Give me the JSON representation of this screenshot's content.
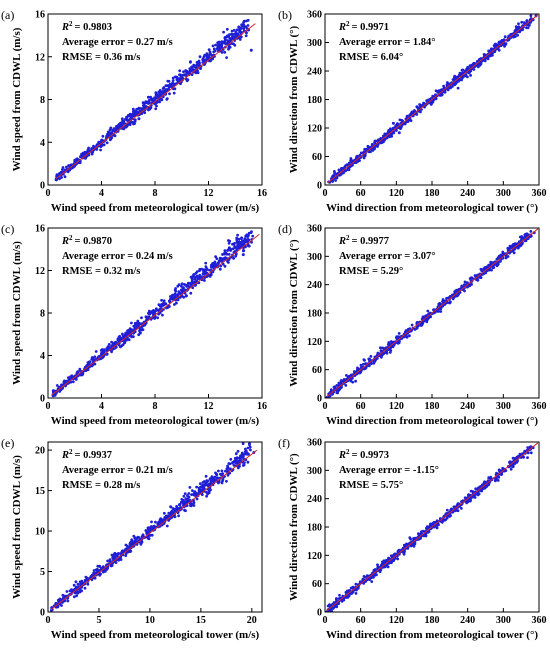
{
  "colors": {
    "points": "#1f1fd6",
    "fit_line": "#d62728",
    "axis": "#000000"
  },
  "chart_data": [
    {
      "type": "scatter",
      "panel_label": "(a)",
      "xlabel": "Wind speed from meteorological tower (m/s)",
      "ylabel": "Wind speed from CDWL (m/s)",
      "xlim": [
        0,
        16
      ],
      "ylim": [
        0,
        16
      ],
      "xticks": [
        "0",
        "4",
        "8",
        "12",
        "16"
      ],
      "yticks": [
        "0",
        "4",
        "8",
        "12",
        "16"
      ],
      "stats": {
        "r2": "= 0.9803",
        "avg_error": "Average error = 0.27 m/s",
        "rmse": "RMSE = 0.36 m/s"
      },
      "fit_line": [
        [
          0.6,
          0.6
        ],
        [
          15.5,
          15.1
        ]
      ],
      "points": [
        [
          1.0,
          1.2
        ],
        [
          1.5,
          1.3
        ],
        [
          2.0,
          2.3
        ],
        [
          2.4,
          2.1
        ],
        [
          3.0,
          3.3
        ],
        [
          3.3,
          2.9
        ],
        [
          3.8,
          4.0
        ],
        [
          4.2,
          4.1
        ],
        [
          4.6,
          4.9
        ],
        [
          5.0,
          4.6
        ],
        [
          5.4,
          5.7
        ],
        [
          5.9,
          5.5
        ],
        [
          6.3,
          6.6
        ],
        [
          6.8,
          6.2
        ],
        [
          7.2,
          7.6
        ],
        [
          7.6,
          7.1
        ],
        [
          8.1,
          8.4
        ],
        [
          8.5,
          8.0
        ],
        [
          9.0,
          9.3
        ],
        [
          9.4,
          9.0
        ],
        [
          9.9,
          10.3
        ],
        [
          10.4,
          9.8
        ],
        [
          10.9,
          11.2
        ],
        [
          11.4,
          10.9
        ],
        [
          11.9,
          12.0
        ],
        [
          12.3,
          11.8
        ],
        [
          13.0,
          13.4
        ],
        [
          13.6,
          13.2
        ],
        [
          14.2,
          14.1
        ],
        [
          15.0,
          14.5
        ],
        [
          15.2,
          12.6
        ],
        [
          2.8,
          2.5
        ],
        [
          6.0,
          6.5
        ],
        [
          8.8,
          8.6
        ]
      ]
    },
    {
      "type": "scatter",
      "panel_label": "(b)",
      "xlabel": "Wind direction from meteorological tower (°)",
      "ylabel": "Wind direction from CDWL (°)",
      "xlim": [
        0,
        360
      ],
      "ylim": [
        0,
        360
      ],
      "xticks": [
        "0",
        "60",
        "120",
        "180",
        "240",
        "300",
        "360"
      ],
      "yticks": [
        "0",
        "60",
        "120",
        "180",
        "240",
        "300",
        "360"
      ],
      "stats": {
        "r2": "= 0.9971",
        "avg_error": "Average error = 1.84°",
        "rmse": "RMSE = 6.04°"
      },
      "fit_line": [
        [
          5,
          5
        ],
        [
          358,
          358
        ]
      ],
      "points": [
        [
          20,
          15
        ],
        [
          30,
          35
        ],
        [
          40,
          32
        ],
        [
          50,
          52
        ],
        [
          60,
          58
        ],
        [
          70,
          75
        ],
        [
          80,
          78
        ],
        [
          90,
          95
        ],
        [
          100,
          98
        ],
        [
          110,
          118
        ],
        [
          120,
          115
        ],
        [
          130,
          128
        ],
        [
          140,
          138
        ],
        [
          150,
          152
        ],
        [
          160,
          158
        ],
        [
          170,
          170
        ],
        [
          180,
          178
        ],
        [
          190,
          195
        ],
        [
          200,
          200
        ],
        [
          210,
          212
        ],
        [
          220,
          218
        ],
        [
          230,
          232
        ],
        [
          240,
          238
        ],
        [
          250,
          255
        ],
        [
          260,
          258
        ],
        [
          270,
          272
        ],
        [
          280,
          278
        ],
        [
          290,
          292
        ],
        [
          300,
          302
        ],
        [
          310,
          308
        ],
        [
          320,
          325
        ],
        [
          330,
          328
        ],
        [
          340,
          342
        ],
        [
          350,
          348
        ],
        [
          355,
          356
        ],
        [
          115,
          130
        ],
        [
          125,
          110
        ]
      ]
    },
    {
      "type": "scatter",
      "panel_label": "(c)",
      "xlabel": "Wind speed from meteorological tower (m/s)",
      "ylabel": "Wind speed from CDWL (m/s)",
      "xlim": [
        0,
        16
      ],
      "ylim": [
        0,
        16
      ],
      "xticks": [
        "0",
        "4",
        "8",
        "12",
        "16"
      ],
      "yticks": [
        "0",
        "4",
        "8",
        "12",
        "16"
      ],
      "stats": {
        "r2": "= 0.9870",
        "avg_error": "Average error = 0.24 m/s",
        "rmse": "RMSE = 0.32 m/s"
      },
      "fit_line": [
        [
          0.3,
          0.3
        ],
        [
          15.8,
          15.4
        ]
      ],
      "points": [
        [
          0.8,
          0.9
        ],
        [
          1.2,
          1.5
        ],
        [
          1.7,
          1.5
        ],
        [
          2.2,
          2.4
        ],
        [
          2.6,
          2.3
        ],
        [
          3.1,
          3.4
        ],
        [
          3.5,
          3.2
        ],
        [
          4.0,
          4.2
        ],
        [
          4.4,
          4.1
        ],
        [
          4.9,
          5.1
        ],
        [
          5.3,
          5.0
        ],
        [
          5.8,
          6.0
        ],
        [
          6.2,
          5.9
        ],
        [
          6.7,
          6.9
        ],
        [
          7.1,
          6.8
        ],
        [
          7.6,
          7.9
        ],
        [
          8.0,
          7.7
        ],
        [
          8.5,
          8.8
        ],
        [
          9.0,
          8.7
        ],
        [
          9.5,
          9.8
        ],
        [
          10.0,
          9.6
        ],
        [
          10.5,
          10.8
        ],
        [
          11.0,
          10.6
        ],
        [
          11.6,
          11.7
        ],
        [
          12.2,
          12.0
        ],
        [
          12.8,
          12.9
        ],
        [
          13.4,
          13.1
        ],
        [
          14.0,
          13.8
        ],
        [
          14.6,
          13.5
        ],
        [
          3.8,
          3.9
        ],
        [
          6.0,
          6.3
        ]
      ]
    },
    {
      "type": "scatter",
      "panel_label": "(d)",
      "xlabel": "Wind direction from meteorological tower (°)",
      "ylabel": "Wind direction from CDWL (°)",
      "xlim": [
        0,
        360
      ],
      "ylim": [
        0,
        360
      ],
      "xticks": [
        "0",
        "60",
        "120",
        "180",
        "240",
        "300",
        "360"
      ],
      "yticks": [
        "0",
        "60",
        "120",
        "180",
        "240",
        "300",
        "360"
      ],
      "stats": {
        "r2": "= 0.9977",
        "avg_error": "Average error = 3.07°",
        "rmse": "RMSE = 5.29°"
      },
      "fit_line": [
        [
          3,
          3
        ],
        [
          358,
          358
        ]
      ],
      "points": [
        [
          25,
          20
        ],
        [
          35,
          38
        ],
        [
          45,
          42
        ],
        [
          55,
          58
        ],
        [
          65,
          62
        ],
        [
          75,
          78
        ],
        [
          85,
          82
        ],
        [
          95,
          98
        ],
        [
          105,
          102
        ],
        [
          115,
          118
        ],
        [
          125,
          120
        ],
        [
          135,
          138
        ],
        [
          145,
          142
        ],
        [
          155,
          158
        ],
        [
          165,
          162
        ],
        [
          175,
          178
        ],
        [
          185,
          182
        ],
        [
          195,
          198
        ],
        [
          205,
          202
        ],
        [
          215,
          218
        ],
        [
          225,
          222
        ],
        [
          235,
          238
        ],
        [
          245,
          242
        ],
        [
          255,
          258
        ],
        [
          265,
          262
        ],
        [
          275,
          278
        ],
        [
          285,
          282
        ],
        [
          295,
          298
        ],
        [
          305,
          302
        ],
        [
          315,
          318
        ],
        [
          325,
          322
        ],
        [
          335,
          338
        ],
        [
          345,
          342
        ],
        [
          352,
          350
        ]
      ]
    },
    {
      "type": "scatter",
      "panel_label": "(e)",
      "xlabel": "Wind speed from meteorological tower (m/s)",
      "ylabel": "Wind speed from CDWL (m/s)",
      "xlim": [
        0,
        21
      ],
      "ylim": [
        0,
        21
      ],
      "xticks": [
        "0",
        "5",
        "10",
        "15",
        "20"
      ],
      "yticks": [
        "0",
        "5",
        "10",
        "15",
        "20"
      ],
      "stats": {
        "r2": "= 0.9937",
        "avg_error": "Average error = 0.21 m/s",
        "rmse": "RMSE = 0.28 m/s"
      },
      "fit_line": [
        [
          0.3,
          0.3
        ],
        [
          20.5,
          20.0
        ]
      ],
      "points": [
        [
          0.8,
          0.6
        ],
        [
          1.3,
          1.5
        ],
        [
          1.9,
          1.7
        ],
        [
          2.5,
          2.7
        ],
        [
          3.1,
          2.9
        ],
        [
          3.7,
          3.9
        ],
        [
          4.3,
          4.1
        ],
        [
          4.9,
          5.1
        ],
        [
          5.5,
          5.3
        ],
        [
          6.1,
          6.3
        ],
        [
          6.7,
          6.5
        ],
        [
          7.3,
          7.5
        ],
        [
          7.9,
          7.7
        ],
        [
          8.5,
          8.7
        ],
        [
          9.1,
          8.9
        ],
        [
          9.7,
          9.9
        ],
        [
          10.3,
          10.1
        ],
        [
          10.9,
          11.1
        ],
        [
          11.5,
          11.3
        ],
        [
          12.1,
          12.3
        ],
        [
          12.7,
          12.5
        ],
        [
          13.3,
          13.4
        ],
        [
          13.9,
          13.6
        ],
        [
          14.5,
          14.7
        ],
        [
          15.1,
          14.9
        ],
        [
          15.7,
          15.2
        ],
        [
          18.6,
          19.0
        ],
        [
          19.1,
          18.5
        ],
        [
          20.2,
          19.7
        ]
      ]
    },
    {
      "type": "scatter",
      "panel_label": "(f)",
      "xlabel": "Wind direction from meteorological tower (°)",
      "ylabel": "Wind direction from CDWL (°)",
      "xlim": [
        0,
        360
      ],
      "ylim": [
        0,
        360
      ],
      "xticks": [
        "0",
        "60",
        "120",
        "180",
        "240",
        "300",
        "360"
      ],
      "yticks": [
        "0",
        "60",
        "120",
        "180",
        "240",
        "300",
        "360"
      ],
      "stats": {
        "r2": "= 0.9973",
        "avg_error": "Average error = -1.15°",
        "rmse": "RMSE = 5.75°"
      },
      "fit_line": [
        [
          3,
          3
        ],
        [
          358,
          358
        ]
      ],
      "points": [
        [
          30,
          28
        ],
        [
          40,
          45
        ],
        [
          50,
          48
        ],
        [
          60,
          62
        ],
        [
          70,
          68
        ],
        [
          80,
          82
        ],
        [
          90,
          88
        ],
        [
          100,
          102
        ],
        [
          110,
          108
        ],
        [
          120,
          122
        ],
        [
          130,
          128
        ],
        [
          140,
          142
        ],
        [
          150,
          148
        ],
        [
          160,
          162
        ],
        [
          170,
          168
        ],
        [
          180,
          182
        ],
        [
          190,
          188
        ],
        [
          200,
          202
        ],
        [
          210,
          208
        ],
        [
          220,
          222
        ],
        [
          230,
          228
        ],
        [
          240,
          242
        ],
        [
          250,
          248
        ],
        [
          260,
          262
        ],
        [
          270,
          268
        ],
        [
          280,
          282
        ],
        [
          290,
          288
        ],
        [
          300,
          302
        ],
        [
          310,
          308
        ],
        [
          320,
          322
        ],
        [
          330,
          328
        ],
        [
          340,
          342
        ],
        [
          350,
          348
        ]
      ]
    }
  ]
}
